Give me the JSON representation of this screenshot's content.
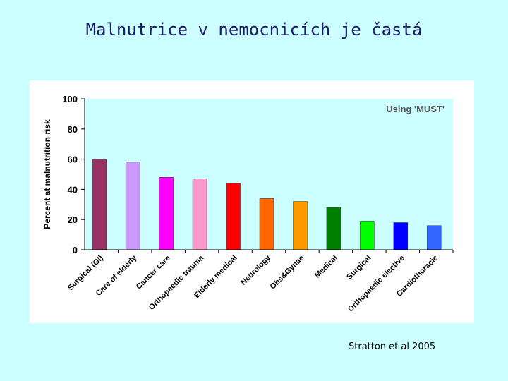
{
  "slide": {
    "title": "Malnutrice v nemocnicích je častá",
    "citation": "Stratton et al 2005"
  },
  "chart_data": {
    "type": "bar",
    "annotation": "Using 'MUST'",
    "ylabel": "Percent at malnutrition risk",
    "xlabel": "",
    "ylim": [
      0,
      100
    ],
    "yticks": [
      0,
      20,
      40,
      60,
      80,
      100
    ],
    "grid": false,
    "legend": "none",
    "categories": [
      "Surgical (GI)",
      "Care of elderly",
      "Cancer care",
      "Orthopaedic trauma",
      "Elderly medical",
      "Neurology",
      "Obs&Gynae",
      "Medical",
      "Surgical",
      "Orthopaedic elective",
      "Cardiothoracic"
    ],
    "values": [
      60,
      58,
      48,
      47,
      44,
      34,
      32,
      28,
      19,
      18,
      16
    ],
    "colors": [
      "#993366",
      "#cc99ff",
      "#ff00ff",
      "#ff99cc",
      "#ff0000",
      "#ff6600",
      "#ff9900",
      "#008000",
      "#00ff00",
      "#0000ff",
      "#3366ff"
    ],
    "plot_background": "#ccffff",
    "panel_background": "#ffffff"
  }
}
